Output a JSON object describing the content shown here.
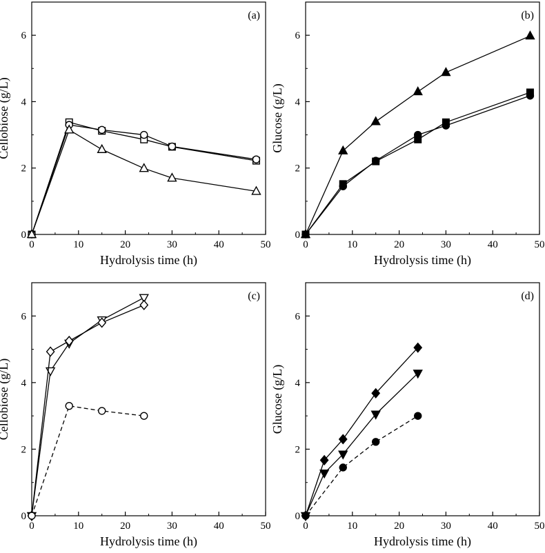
{
  "chart_data": [
    {
      "type": "line",
      "panel_label": "(a)",
      "xlabel": "Hydrolysis time (h)",
      "ylabel": "Cellobiose (g/L)",
      "xlim": [
        0,
        50
      ],
      "ylim": [
        0,
        7
      ],
      "xticks": [
        0,
        10,
        20,
        30,
        40,
        50
      ],
      "yticks": [
        0,
        2,
        4,
        6
      ],
      "series": [
        {
          "name": "square-open",
          "marker": "square",
          "fill": "open",
          "dash": "solid",
          "x": [
            0,
            8,
            15,
            24,
            30,
            48
          ],
          "values": [
            0,
            3.38,
            3.12,
            2.86,
            2.64,
            2.22
          ]
        },
        {
          "name": "circle-open",
          "marker": "circle",
          "fill": "open",
          "dash": "solid",
          "x": [
            0,
            8,
            15,
            24,
            30,
            48
          ],
          "values": [
            0,
            3.3,
            3.15,
            3.0,
            2.65,
            2.26
          ]
        },
        {
          "name": "triangle-up-open",
          "marker": "triangle-up",
          "fill": "open",
          "dash": "solid",
          "x": [
            0,
            8,
            15,
            24,
            30,
            48
          ],
          "values": [
            0,
            3.15,
            2.56,
            1.99,
            1.7,
            1.3
          ]
        }
      ]
    },
    {
      "type": "line",
      "panel_label": "(b)",
      "xlabel": "Hydrolysis time (h)",
      "ylabel": "Glucose (g/L)",
      "xlim": [
        0,
        50
      ],
      "ylim": [
        0,
        7
      ],
      "xticks": [
        0,
        10,
        20,
        30,
        40,
        50
      ],
      "yticks": [
        0,
        2,
        4,
        6
      ],
      "series": [
        {
          "name": "triangle-up-filled",
          "marker": "triangle-up",
          "fill": "filled",
          "dash": "solid",
          "x": [
            0,
            8,
            15,
            24,
            30,
            48
          ],
          "values": [
            0,
            2.52,
            3.4,
            4.3,
            4.88,
            5.98
          ]
        },
        {
          "name": "square-filled",
          "marker": "square",
          "fill": "filled",
          "dash": "solid",
          "x": [
            0,
            8,
            15,
            24,
            30,
            48
          ],
          "values": [
            0,
            1.52,
            2.2,
            2.86,
            3.38,
            4.28
          ]
        },
        {
          "name": "circle-filled",
          "marker": "circle",
          "fill": "filled",
          "dash": "solid",
          "x": [
            0,
            8,
            15,
            24,
            30,
            48
          ],
          "values": [
            0,
            1.45,
            2.22,
            3.0,
            3.28,
            4.18
          ]
        }
      ]
    },
    {
      "type": "line",
      "panel_label": "(c)",
      "xlabel": "Hydrolysis time (h)",
      "ylabel": "Cellobiose (g/L)",
      "xlim": [
        0,
        50
      ],
      "ylim": [
        0,
        7
      ],
      "xticks": [
        0,
        10,
        20,
        30,
        40,
        50
      ],
      "yticks": [
        0,
        2,
        4,
        6
      ],
      "series": [
        {
          "name": "triangle-down-open",
          "marker": "triangle-down",
          "fill": "open",
          "dash": "solid",
          "x": [
            0,
            4,
            8,
            15,
            24
          ],
          "values": [
            0,
            4.35,
            5.18,
            5.88,
            6.55
          ]
        },
        {
          "name": "diamond-open",
          "marker": "diamond",
          "fill": "open",
          "dash": "solid",
          "x": [
            0,
            4,
            8,
            15,
            24
          ],
          "values": [
            0,
            4.93,
            5.25,
            5.8,
            6.33
          ]
        },
        {
          "name": "circle-open-dashed",
          "marker": "circle",
          "fill": "open",
          "dash": "dashed",
          "x": [
            0,
            8,
            15,
            24
          ],
          "values": [
            0,
            3.3,
            3.15,
            3.0
          ]
        }
      ]
    },
    {
      "type": "line",
      "panel_label": "(d)",
      "xlabel": "Hydrolysis time (h)",
      "ylabel": "Glucose (g/L)",
      "xlim": [
        0,
        50
      ],
      "ylim": [
        0,
        7
      ],
      "xticks": [
        0,
        10,
        20,
        30,
        40,
        50
      ],
      "yticks": [
        0,
        2,
        4,
        6
      ],
      "series": [
        {
          "name": "diamond-filled",
          "marker": "diamond",
          "fill": "filled",
          "dash": "solid",
          "x": [
            0,
            4,
            8,
            15,
            24
          ],
          "values": [
            0,
            1.67,
            2.3,
            3.68,
            5.05
          ]
        },
        {
          "name": "triangle-down-filled",
          "marker": "triangle-down",
          "fill": "filled",
          "dash": "solid",
          "x": [
            0,
            4,
            8,
            15,
            24
          ],
          "values": [
            0,
            1.28,
            1.85,
            3.05,
            4.28
          ]
        },
        {
          "name": "circle-filled-dashed",
          "marker": "circle",
          "fill": "filled",
          "dash": "dashed",
          "x": [
            0,
            8,
            15,
            24
          ],
          "values": [
            0,
            1.45,
            2.22,
            3.0
          ]
        }
      ]
    }
  ]
}
